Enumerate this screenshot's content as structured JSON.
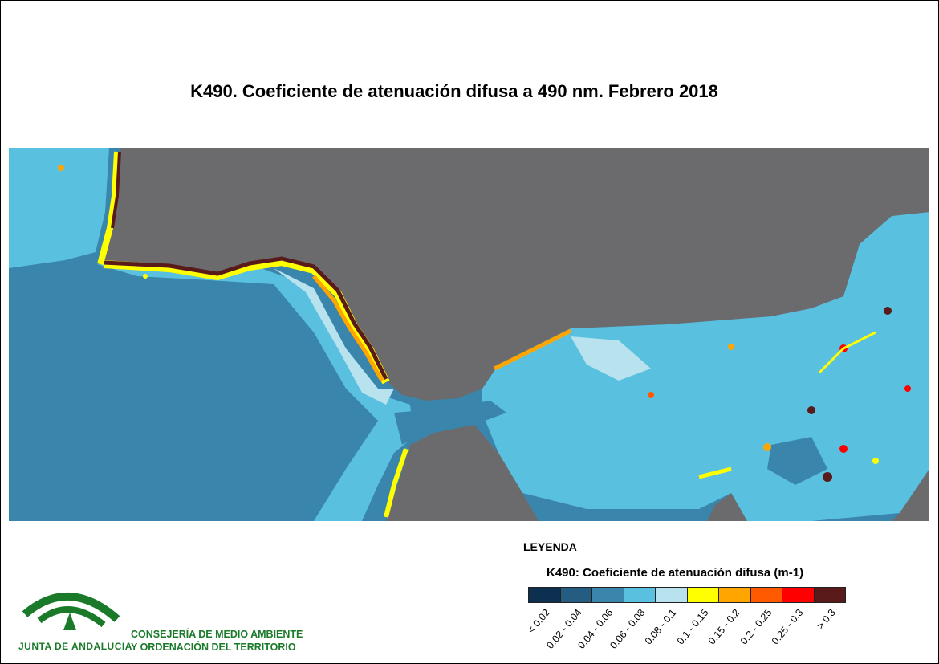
{
  "title": "K490. Coeficiente de atenuación difusa a 490 nm. Febrero 2018",
  "legend": {
    "heading": "LEYENDA",
    "title": "K490: Coeficiente de atenuación difusa (m-1)",
    "classes": [
      {
        "label": "< 0.02",
        "color": "#0d3050"
      },
      {
        "label": "0.02 - 0.04",
        "color": "#245c82"
      },
      {
        "label": "0.04 - 0.06",
        "color": "#3a85ac"
      },
      {
        "label": "0.06 - 0.08",
        "color": "#5ac0e0"
      },
      {
        "label": "0.08 - 0.1",
        "color": "#b8e2ee"
      },
      {
        "label": "0.1 - 0.15",
        "color": "#ffff00"
      },
      {
        "label": "0.15 - 0.2",
        "color": "#ffa500"
      },
      {
        "label": "0.2 - 0.25",
        "color": "#ff5a00"
      },
      {
        "label": "0.25 - 0.3",
        "color": "#ff0000"
      },
      {
        "label": "> 0.3",
        "color": "#5a1a1a"
      }
    ]
  },
  "land_color": "#6b6b6e",
  "logo": {
    "text": "JUNTA DE ANDALUCIA",
    "department_line1": "CONSEJERÍA DE MEDIO AMBIENTE",
    "department_line2": "Y ORDENACIÓN DEL TERRITORIO",
    "brand_color": "#1a7a2a"
  }
}
